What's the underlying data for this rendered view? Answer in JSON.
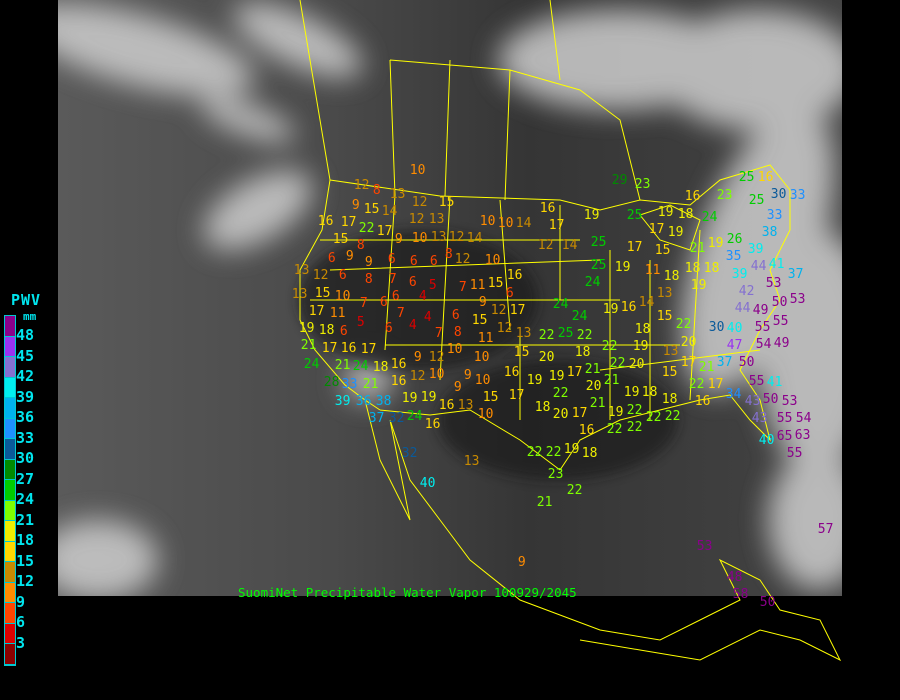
{
  "caption": "SuomiNet Precipitable Water Vapor 100929/2045",
  "legend": {
    "title": "PWV",
    "units": "mm",
    "labels": [
      "48",
      "45",
      "42",
      "39",
      "36",
      "33",
      "30",
      "27",
      "24",
      "21",
      "18",
      "15",
      "12",
      "9",
      "6",
      "3"
    ],
    "colors": [
      "#8B008B",
      "#9A32F0",
      "#8470D0",
      "#00EEEE",
      "#00B2EE",
      "#1E90FF",
      "#0A5A9A",
      "#008B00",
      "#00CD00",
      "#7FFF00",
      "#EEEE00",
      "#FFD700",
      "#C88A00",
      "#FF8C00",
      "#FF4500",
      "#DD0000",
      "#8B0000"
    ],
    "thresholds": [
      48,
      45,
      42,
      39,
      36,
      33,
      30,
      27,
      24,
      21,
      18,
      15,
      12,
      9,
      6,
      3,
      0
    ]
  },
  "map": {
    "background_color": "#3a3a3a",
    "border_color": "#FFFF00"
  },
  "stations": [
    10,
    12,
    8,
    13,
    12,
    15,
    9,
    15,
    14,
    16,
    17,
    22,
    12,
    13,
    10,
    10,
    14,
    16,
    17,
    15,
    17,
    9,
    8,
    9,
    10,
    13,
    12,
    14,
    8,
    12,
    14,
    6,
    9,
    6,
    6,
    6,
    12,
    10,
    13,
    12,
    6,
    8,
    7,
    6,
    5,
    7,
    11,
    15,
    16,
    6,
    13,
    15,
    10,
    7,
    6,
    6,
    4,
    9,
    12,
    17,
    11,
    7,
    4,
    6,
    15,
    17,
    18,
    19,
    6,
    5,
    4,
    8,
    11,
    12,
    13,
    7,
    6,
    17,
    24,
    24,
    21,
    16,
    21,
    22,
    25,
    22,
    24,
    24,
    28,
    17,
    18,
    21,
    9,
    12,
    10,
    10,
    15,
    20,
    18,
    33,
    36,
    16,
    16,
    12,
    10,
    9,
    10,
    9,
    16,
    19,
    19,
    22,
    17,
    39,
    38,
    37,
    19,
    19,
    16,
    17,
    15,
    13,
    10,
    18,
    20,
    17,
    32,
    24,
    16,
    29,
    23,
    25,
    16,
    23,
    16,
    30,
    33,
    25,
    25,
    19,
    19,
    24,
    33,
    38,
    17,
    19,
    18,
    25,
    17,
    15,
    21,
    19,
    26,
    39,
    35,
    44,
    25,
    24,
    19,
    11,
    18,
    18,
    18,
    19,
    39,
    42,
    41,
    53,
    37,
    13,
    14,
    19,
    16,
    15,
    44,
    49,
    50,
    53,
    55,
    22,
    30,
    40,
    55,
    54,
    18,
    20,
    19,
    47,
    49,
    22,
    22,
    20,
    13,
    17,
    15,
    21,
    22,
    17,
    37,
    50,
    21,
    20,
    21,
    55,
    19,
    18,
    18,
    16,
    34,
    43,
    50,
    41,
    53,
    55,
    21,
    19,
    22,
    22,
    22,
    43,
    54,
    63,
    65,
    55,
    40,
    16,
    22,
    22,
    32,
    40,
    13,
    22,
    22,
    19,
    18,
    23,
    22,
    21,
    9,
    53,
    48,
    58,
    50,
    57
  ]
}
